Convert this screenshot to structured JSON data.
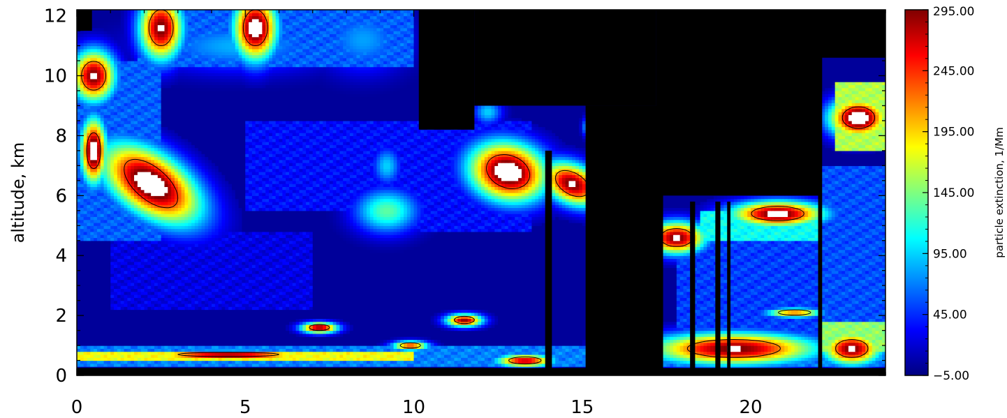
{
  "chart_data": {
    "type": "heatmap",
    "title": "",
    "xlabel": "",
    "ylabel": "altitude, km",
    "xlim": [
      0,
      24
    ],
    "ylim": [
      0,
      12.2
    ],
    "x_ticks": [
      0,
      5,
      10,
      15,
      20
    ],
    "y_ticks": [
      0,
      2,
      4,
      6,
      8,
      10,
      12
    ],
    "colorbar": {
      "label": "particle extinction, 1/Mm",
      "range": [
        -5,
        295
      ],
      "ticks": [
        "295.00",
        "245.00",
        "195.00",
        "145.00",
        "95.00",
        "45.00",
        "−5.00"
      ]
    },
    "colormap": [
      "#00007f",
      "#0000ff",
      "#007fff",
      "#00ffff",
      "#7fff7f",
      "#ffff00",
      "#ff7f00",
      "#ff0000",
      "#7f0000"
    ],
    "saturated_color": "#ffffff",
    "missing_color": "#000000",
    "contour_color": "#000000",
    "layers": [
      {
        "x": [
          0,
          24
        ],
        "y": [
          0.3,
          1.0
        ],
        "value": 70
      },
      {
        "x": [
          0,
          10
        ],
        "y": [
          0.5,
          0.8
        ],
        "value": 180
      },
      {
        "x": [
          0,
          2.5
        ],
        "y": [
          4.5,
          10.5
        ],
        "value": 60
      },
      {
        "x": [
          1.8,
          10
        ],
        "y": [
          10.3,
          12.2
        ],
        "value": 60
      },
      {
        "x": [
          1,
          7
        ],
        "y": [
          2.2,
          4.8
        ],
        "value": 25
      },
      {
        "x": [
          5,
          10
        ],
        "y": [
          5.5,
          8.5
        ],
        "value": 35
      },
      {
        "x": [
          10,
          13.5
        ],
        "y": [
          4.8,
          8.5
        ],
        "value": 35
      },
      {
        "x": [
          17.8,
          22
        ],
        "y": [
          1.0,
          4.5
        ],
        "value": 50
      },
      {
        "x": [
          18.5,
          22
        ],
        "y": [
          4.5,
          5.5
        ],
        "value": 110
      },
      {
        "x": [
          22.1,
          24
        ],
        "y": [
          0.5,
          7.0
        ],
        "value": 55
      },
      {
        "x": [
          22.5,
          24
        ],
        "y": [
          7.5,
          9.8
        ],
        "value": 160
      },
      {
        "x": [
          22.1,
          24
        ],
        "y": [
          0.8,
          1.8
        ],
        "value": 150
      }
    ],
    "features": [
      {
        "cx": 0.5,
        "cy": 7.5,
        "rx": 0.35,
        "ry": 1.0,
        "rot": 0,
        "value": 330
      },
      {
        "cx": 2.2,
        "cy": 6.4,
        "rx": 1.6,
        "ry": 0.9,
        "rot": -40,
        "value": 330
      },
      {
        "cx": 2.5,
        "cy": 11.6,
        "rx": 0.6,
        "ry": 1.0,
        "rot": 0,
        "value": 300
      },
      {
        "cx": 5.3,
        "cy": 11.6,
        "rx": 0.6,
        "ry": 1.0,
        "rot": 0,
        "value": 320
      },
      {
        "cx": 0.5,
        "cy": 10.0,
        "rx": 0.6,
        "ry": 0.8,
        "rot": 0,
        "value": 300
      },
      {
        "cx": 4.8,
        "cy": 11.0,
        "rx": 2.5,
        "ry": 0.8,
        "rot": 0,
        "value": 85
      },
      {
        "cx": 8.5,
        "cy": 11.2,
        "rx": 1.2,
        "ry": 1.0,
        "rot": 0,
        "value": 80
      },
      {
        "cx": 12.8,
        "cy": 6.8,
        "rx": 1.1,
        "ry": 0.9,
        "rot": -20,
        "value": 330
      },
      {
        "cx": 14.7,
        "cy": 6.4,
        "rx": 0.9,
        "ry": 0.6,
        "rot": -30,
        "value": 300
      },
      {
        "cx": 15.3,
        "cy": 8.3,
        "rx": 0.2,
        "ry": 0.3,
        "rot": 0,
        "value": 260
      },
      {
        "cx": 9.2,
        "cy": 5.5,
        "rx": 0.9,
        "ry": 0.7,
        "rot": 0,
        "value": 135
      },
      {
        "cx": 9.2,
        "cy": 7.0,
        "rx": 0.4,
        "ry": 0.6,
        "rot": 0,
        "value": 95
      },
      {
        "cx": 12.2,
        "cy": 8.8,
        "rx": 0.4,
        "ry": 0.4,
        "rot": 0,
        "value": 95
      },
      {
        "cx": 23.2,
        "cy": 8.6,
        "rx": 0.8,
        "ry": 0.6,
        "rot": 0,
        "value": 330
      },
      {
        "cx": 17.8,
        "cy": 4.6,
        "rx": 0.8,
        "ry": 0.5,
        "rot": 0,
        "value": 300
      },
      {
        "cx": 20.8,
        "cy": 5.4,
        "rx": 1.3,
        "ry": 0.4,
        "rot": 0,
        "value": 310
      },
      {
        "cx": 7.2,
        "cy": 1.6,
        "rx": 0.5,
        "ry": 0.17,
        "rot": 0,
        "value": 300
      },
      {
        "cx": 11.5,
        "cy": 1.85,
        "rx": 0.5,
        "ry": 0.2,
        "rot": 0,
        "value": 290
      },
      {
        "cx": 19.5,
        "cy": 0.9,
        "rx": 2.3,
        "ry": 0.5,
        "rot": 0,
        "value": 300
      },
      {
        "cx": 23.0,
        "cy": 0.9,
        "rx": 0.8,
        "ry": 0.5,
        "rot": 0,
        "value": 300
      },
      {
        "cx": 21.3,
        "cy": 2.1,
        "rx": 0.8,
        "ry": 0.15,
        "rot": 0,
        "value": 230
      },
      {
        "cx": 4.5,
        "cy": 0.7,
        "rx": 2.5,
        "ry": 0.12,
        "rot": 0,
        "value": 320
      },
      {
        "cx": 9.9,
        "cy": 1.0,
        "rx": 0.5,
        "ry": 0.15,
        "rot": 0,
        "value": 250
      },
      {
        "cx": 13.3,
        "cy": 0.5,
        "rx": 0.8,
        "ry": 0.2,
        "rot": 0,
        "value": 280
      }
    ],
    "missing_regions": [
      {
        "x": [
          0,
          0.45
        ],
        "y": [
          11.5,
          12.2
        ]
      },
      {
        "x": [
          10.15,
          11.8
        ],
        "y": [
          8.2,
          12.2
        ]
      },
      {
        "x": [
          11.8,
          17.2
        ],
        "y": [
          9.0,
          12.2
        ]
      },
      {
        "x": [
          15.1,
          17.4
        ],
        "y": [
          0,
          9.0
        ]
      },
      {
        "x": [
          17.2,
          22.1
        ],
        "y": [
          6.0,
          12.2
        ]
      },
      {
        "x": [
          13.9,
          14.1
        ],
        "y": [
          0,
          7.5
        ]
      },
      {
        "x": [
          15.9,
          16.05
        ],
        "y": [
          0.3,
          8.0
        ]
      },
      {
        "x": [
          16.5,
          16.8
        ],
        "y": [
          0,
          8.0
        ]
      },
      {
        "x": [
          18.2,
          18.35
        ],
        "y": [
          0,
          5.8
        ]
      },
      {
        "x": [
          18.95,
          19.1
        ],
        "y": [
          0,
          5.8
        ]
      },
      {
        "x": [
          19.3,
          19.4
        ],
        "y": [
          0,
          5.8
        ]
      },
      {
        "x": [
          22.0,
          22.12
        ],
        "y": [
          0,
          12.2
        ]
      },
      {
        "x": [
          22.1,
          24
        ],
        "y": [
          10.6,
          12.2
        ]
      },
      {
        "x": [
          0,
          24
        ],
        "y": [
          0,
          0.25
        ]
      }
    ]
  }
}
